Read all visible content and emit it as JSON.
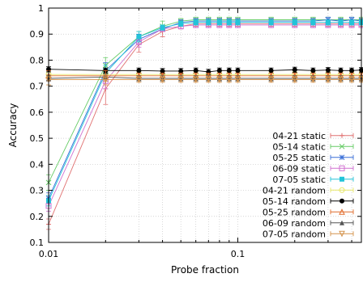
{
  "chart_data": {
    "type": "line",
    "title": "",
    "xlabel": "Probe fraction",
    "ylabel": "Accuracy",
    "xscale": "log",
    "xlim": [
      0.01,
      0.45
    ],
    "ylim": [
      0.1,
      1.0
    ],
    "xticks": [
      {
        "value": 0.01,
        "label": "0.01"
      },
      {
        "value": 0.1,
        "label": "0.1"
      }
    ],
    "yticks": [
      {
        "value": 0.1,
        "label": "0.1"
      },
      {
        "value": 0.2,
        "label": "0.2"
      },
      {
        "value": 0.3,
        "label": "0.3"
      },
      {
        "value": 0.4,
        "label": "0.4"
      },
      {
        "value": 0.5,
        "label": "0.5"
      },
      {
        "value": 0.6,
        "label": "0.6"
      },
      {
        "value": 0.7,
        "label": "0.7"
      },
      {
        "value": 0.8,
        "label": "0.8"
      },
      {
        "value": 0.9,
        "label": "0.9"
      },
      {
        "value": 1.0,
        "label": "1"
      }
    ],
    "grid": true,
    "legend_position": "bottom-right",
    "x": [
      0.01,
      0.02,
      0.03,
      0.04,
      0.05,
      0.06,
      0.07,
      0.08,
      0.09,
      0.1,
      0.15,
      0.2,
      0.25,
      0.3,
      0.35,
      0.4,
      0.45
    ],
    "series": [
      {
        "name": "04-21 static",
        "color": "#e07070",
        "marker": "plus",
        "values": [
          0.17,
          0.69,
          0.86,
          0.91,
          0.93,
          0.94,
          0.94,
          0.94,
          0.94,
          0.94,
          0.94,
          0.94,
          0.94,
          0.94,
          0.94,
          0.94,
          0.94
        ],
        "errors": [
          0.02,
          0.06,
          0.03,
          0.02,
          0.01,
          0.01,
          0.01,
          0.01,
          0.01,
          0.01,
          0.01,
          0.01,
          0.01,
          0.01,
          0.01,
          0.01,
          0.01
        ]
      },
      {
        "name": "05-14 static",
        "color": "#66cc66",
        "marker": "x",
        "values": [
          0.33,
          0.78,
          0.89,
          0.93,
          0.95,
          0.955,
          0.955,
          0.955,
          0.955,
          0.955,
          0.955,
          0.955,
          0.955,
          0.955,
          0.955,
          0.955,
          0.955
        ],
        "errors": [
          0.03,
          0.03,
          0.02,
          0.02,
          0.01,
          0.01,
          0.01,
          0.01,
          0.01,
          0.01,
          0.01,
          0.01,
          0.01,
          0.01,
          0.01,
          0.01,
          0.01
        ]
      },
      {
        "name": "05-25 static",
        "color": "#3a6fd8",
        "marker": "star",
        "values": [
          0.27,
          0.76,
          0.88,
          0.92,
          0.945,
          0.95,
          0.95,
          0.95,
          0.95,
          0.95,
          0.95,
          0.95,
          0.95,
          0.955,
          0.95,
          0.955,
          0.95
        ],
        "errors": [
          0.02,
          0.03,
          0.02,
          0.01,
          0.01,
          0.01,
          0.01,
          0.01,
          0.01,
          0.01,
          0.01,
          0.01,
          0.01,
          0.01,
          0.01,
          0.01,
          0.01
        ]
      },
      {
        "name": "06-09 static",
        "color": "#d070d0",
        "marker": "square",
        "values": [
          0.24,
          0.72,
          0.87,
          0.92,
          0.93,
          0.935,
          0.935,
          0.935,
          0.935,
          0.935,
          0.935,
          0.935,
          0.935,
          0.935,
          0.935,
          0.935,
          0.935
        ],
        "errors": [
          0.02,
          0.03,
          0.02,
          0.01,
          0.01,
          0.01,
          0.01,
          0.01,
          0.01,
          0.01,
          0.01,
          0.01,
          0.01,
          0.01,
          0.01,
          0.01,
          0.01
        ]
      },
      {
        "name": "07-05 static",
        "color": "#22c4d8",
        "marker": "filled-square",
        "values": [
          0.26,
          0.75,
          0.89,
          0.925,
          0.94,
          0.945,
          0.945,
          0.945,
          0.945,
          0.945,
          0.945,
          0.945,
          0.945,
          0.945,
          0.945,
          0.945,
          0.945
        ],
        "errors": [
          0.02,
          0.03,
          0.02,
          0.01,
          0.01,
          0.01,
          0.01,
          0.01,
          0.01,
          0.01,
          0.01,
          0.01,
          0.01,
          0.01,
          0.01,
          0.01,
          0.01
        ]
      },
      {
        "name": "04-21 random",
        "color": "#e8e86a",
        "marker": "circle",
        "values": [
          0.745,
          0.745,
          0.745,
          0.745,
          0.745,
          0.745,
          0.745,
          0.745,
          0.745,
          0.745,
          0.745,
          0.745,
          0.745,
          0.745,
          0.745,
          0.745,
          0.745
        ],
        "errors": [
          0.01,
          0.01,
          0.01,
          0.01,
          0.01,
          0.01,
          0.01,
          0.01,
          0.01,
          0.01,
          0.01,
          0.01,
          0.01,
          0.01,
          0.01,
          0.01,
          0.01
        ]
      },
      {
        "name": "05-14 random",
        "color": "#000000",
        "marker": "filled-circle",
        "values": [
          0.765,
          0.76,
          0.76,
          0.758,
          0.758,
          0.76,
          0.755,
          0.76,
          0.76,
          0.76,
          0.76,
          0.763,
          0.76,
          0.762,
          0.76,
          0.76,
          0.762
        ],
        "errors": [
          0.01,
          0.01,
          0.01,
          0.01,
          0.01,
          0.01,
          0.01,
          0.01,
          0.01,
          0.01,
          0.01,
          0.01,
          0.01,
          0.01,
          0.01,
          0.01,
          0.01
        ]
      },
      {
        "name": "05-25 random",
        "color": "#e06a2a",
        "marker": "triangle",
        "values": [
          0.74,
          0.74,
          0.74,
          0.74,
          0.74,
          0.74,
          0.74,
          0.74,
          0.74,
          0.74,
          0.74,
          0.74,
          0.74,
          0.74,
          0.74,
          0.74,
          0.74
        ],
        "errors": [
          0.02,
          0.02,
          0.01,
          0.01,
          0.01,
          0.01,
          0.01,
          0.01,
          0.01,
          0.01,
          0.01,
          0.01,
          0.01,
          0.01,
          0.01,
          0.01,
          0.01
        ]
      },
      {
        "name": "06-09 random",
        "color": "#555555",
        "marker": "filled-triangle",
        "values": [
          0.73,
          0.735,
          0.73,
          0.73,
          0.73,
          0.73,
          0.73,
          0.73,
          0.73,
          0.73,
          0.73,
          0.73,
          0.73,
          0.73,
          0.73,
          0.73,
          0.73
        ],
        "errors": [
          0.01,
          0.01,
          0.01,
          0.01,
          0.01,
          0.01,
          0.01,
          0.01,
          0.01,
          0.01,
          0.01,
          0.01,
          0.01,
          0.01,
          0.01,
          0.01,
          0.01
        ]
      },
      {
        "name": "07-05 random",
        "color": "#d4924a",
        "marker": "inverted-triangle",
        "values": [
          0.725,
          0.725,
          0.725,
          0.725,
          0.725,
          0.725,
          0.725,
          0.725,
          0.725,
          0.725,
          0.725,
          0.725,
          0.725,
          0.725,
          0.725,
          0.725,
          0.725
        ],
        "errors": [
          0.02,
          0.02,
          0.01,
          0.01,
          0.01,
          0.01,
          0.01,
          0.01,
          0.01,
          0.01,
          0.01,
          0.01,
          0.01,
          0.01,
          0.01,
          0.01,
          0.01
        ]
      }
    ]
  }
}
